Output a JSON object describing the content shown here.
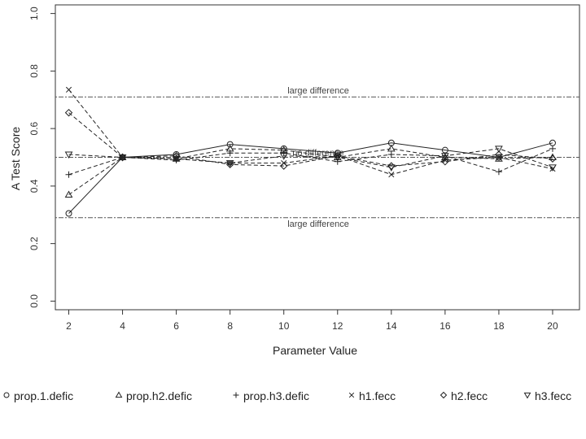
{
  "chart_data": {
    "type": "line",
    "title": "",
    "xlabel": "Parameter Value",
    "ylabel": "A Test Score",
    "x": [
      2,
      4,
      6,
      8,
      10,
      12,
      14,
      16,
      18,
      20
    ],
    "xlim": [
      1.5,
      21
    ],
    "ylim": [
      -0.03,
      1.03
    ],
    "xticks": [
      2,
      4,
      6,
      8,
      10,
      12,
      14,
      16,
      18,
      20
    ],
    "yticks": [
      0.0,
      0.2,
      0.4,
      0.6,
      0.8,
      1.0
    ],
    "xtick_labels": [
      "2",
      "4",
      "6",
      "8",
      "10",
      "12",
      "14",
      "16",
      "18",
      "20"
    ],
    "ytick_labels": [
      "0.0",
      "0.2",
      "0.4",
      "0.6",
      "0.8",
      "1.0"
    ],
    "grid": false,
    "legend_position": "bottom",
    "reference_lines": [
      {
        "y": 0.71,
        "label": "large difference",
        "label_position": "above"
      },
      {
        "y": 0.5,
        "label": "no difference",
        "label_position": "on-line"
      },
      {
        "y": 0.29,
        "label": "large difference",
        "label_position": "below"
      }
    ],
    "series": [
      {
        "name": "prop.1.defic",
        "marker": "circle",
        "line": "solid",
        "values": [
          0.305,
          0.5,
          0.51,
          0.545,
          0.53,
          0.515,
          0.55,
          0.525,
          0.5,
          0.55
        ]
      },
      {
        "name": "prop.h2.defic",
        "marker": "triangle-up",
        "line": "dashed",
        "values": [
          0.37,
          0.5,
          0.495,
          0.53,
          0.525,
          0.5,
          0.53,
          0.5,
          0.495,
          0.5
        ]
      },
      {
        "name": "prop.h3.defic",
        "marker": "plus",
        "line": "dashed",
        "values": [
          0.44,
          0.5,
          0.49,
          0.515,
          0.515,
          0.485,
          0.51,
          0.505,
          0.45,
          0.53
        ]
      },
      {
        "name": "h1.fecc",
        "marker": "cross",
        "line": "dashed",
        "values": [
          0.735,
          0.5,
          0.495,
          0.48,
          0.48,
          0.505,
          0.44,
          0.49,
          0.5,
          0.46
        ]
      },
      {
        "name": "h2.fecc",
        "marker": "diamond",
        "line": "dashed",
        "values": [
          0.655,
          0.5,
          0.505,
          0.475,
          0.47,
          0.505,
          0.47,
          0.485,
          0.51,
          0.495
        ]
      },
      {
        "name": "h3.fecc",
        "marker": "triangle-down",
        "line": "dashed",
        "values": [
          0.51,
          0.5,
          0.495,
          0.48,
          0.505,
          0.5,
          0.465,
          0.505,
          0.53,
          0.465
        ]
      }
    ],
    "colors": {
      "line": "#222222",
      "reference": "#555555",
      "background": "#ffffff"
    }
  }
}
